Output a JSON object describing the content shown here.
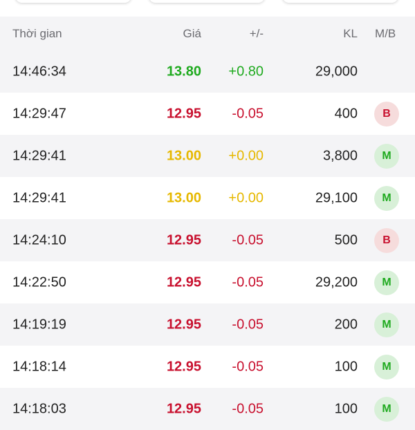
{
  "colors": {
    "up": "#1faa1f",
    "down": "#c8102e",
    "ref": "#e6b800",
    "buy_bg": "#d8f0d8",
    "sell_bg": "#f6dcdc"
  },
  "header": {
    "time": "Thời gian",
    "price": "Giá",
    "change": "+/-",
    "volume": "KL",
    "side": "M/B"
  },
  "rows": [
    {
      "time": "14:46:34",
      "price": "13.80",
      "change": "+0.80",
      "volume": "29,000",
      "side": "",
      "dir": "up"
    },
    {
      "time": "14:29:47",
      "price": "12.95",
      "change": "-0.05",
      "volume": "400",
      "side": "B",
      "dir": "down"
    },
    {
      "time": "14:29:41",
      "price": "13.00",
      "change": "+0.00",
      "volume": "3,800",
      "side": "M",
      "dir": "ref"
    },
    {
      "time": "14:29:41",
      "price": "13.00",
      "change": "+0.00",
      "volume": "29,100",
      "side": "M",
      "dir": "ref"
    },
    {
      "time": "14:24:10",
      "price": "12.95",
      "change": "-0.05",
      "volume": "500",
      "side": "B",
      "dir": "down"
    },
    {
      "time": "14:22:50",
      "price": "12.95",
      "change": "-0.05",
      "volume": "29,200",
      "side": "M",
      "dir": "down"
    },
    {
      "time": "14:19:19",
      "price": "12.95",
      "change": "-0.05",
      "volume": "200",
      "side": "M",
      "dir": "down"
    },
    {
      "time": "14:18:14",
      "price": "12.95",
      "change": "-0.05",
      "volume": "100",
      "side": "M",
      "dir": "down"
    },
    {
      "time": "14:18:03",
      "price": "12.95",
      "change": "-0.05",
      "volume": "100",
      "side": "M",
      "dir": "down"
    }
  ]
}
